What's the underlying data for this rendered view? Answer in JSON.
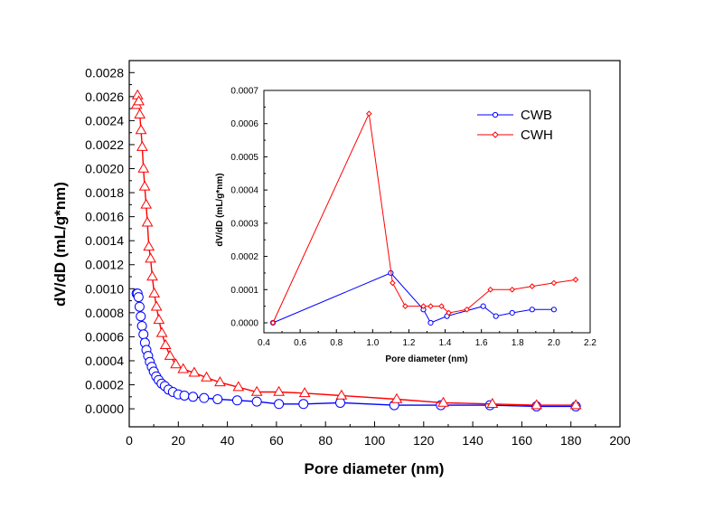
{
  "chart_data": [
    {
      "name": "main",
      "type": "line",
      "xlabel": "Pore diameter (nm)",
      "ylabel": "dV/dD (mL/g*nm)",
      "xlim": [
        0,
        200
      ],
      "ylim": [
        -0.00015,
        0.0029
      ],
      "xticks": [
        0,
        20,
        40,
        60,
        80,
        100,
        120,
        140,
        160,
        180,
        200
      ],
      "xtick_labels": [
        "0",
        "20",
        "40",
        "60",
        "80",
        "100",
        "120",
        "140",
        "160",
        "180",
        "200"
      ],
      "yticks": [
        0,
        0.0002,
        0.0004,
        0.0006,
        0.0008,
        0.001,
        0.0012,
        0.0014,
        0.0016,
        0.0018,
        0.002,
        0.0022,
        0.0024,
        0.0026,
        0.0028
      ],
      "ytick_labels": [
        "0.0000",
        "0.0002",
        "0.0004",
        "0.0006",
        "0.0008",
        "0.0010",
        "0.0012",
        "0.0014",
        "0.0016",
        "0.0018",
        "0.0020",
        "0.0022",
        "0.0024",
        "0.0026",
        "0.0028"
      ],
      "series": [
        {
          "name": "CWB",
          "color": "#0000ff",
          "marker": "circle",
          "x": [
            3.0,
            3.4,
            3.8,
            4.2,
            4.7,
            5.2,
            5.8,
            6.4,
            7.0,
            7.7,
            8.4,
            9.2,
            10.0,
            11.0,
            12.0,
            13.2,
            14.5,
            16.0,
            17.8,
            20.0,
            22.5,
            26.0,
            30.5,
            36.0,
            44.0,
            52.0,
            61.0,
            71.0,
            86.0,
            108.0,
            127.0,
            147.0,
            166.0,
            182.0
          ],
          "y": [
            0.00096,
            0.00096,
            0.00093,
            0.00085,
            0.00077,
            0.00069,
            0.00062,
            0.00055,
            0.00049,
            0.00044,
            0.00039,
            0.00035,
            0.00031,
            0.00027,
            0.00024,
            0.00021,
            0.00019,
            0.00016,
            0.00014,
            0.00012,
            0.00011,
            0.0001,
            9e-05,
            8e-05,
            7e-05,
            6e-05,
            4e-05,
            4e-05,
            5e-05,
            3e-05,
            3e-05,
            3e-05,
            2e-05,
            2e-05
          ]
        },
        {
          "name": "CWH",
          "color": "#ff0000",
          "marker": "triangle",
          "x": [
            3.0,
            3.4,
            3.9,
            4.3,
            4.8,
            5.3,
            5.8,
            6.3,
            6.9,
            7.4,
            8.0,
            8.7,
            9.4,
            10.2,
            11.1,
            12.1,
            13.3,
            14.8,
            16.6,
            19.0,
            22.0,
            26.5,
            31.5,
            37.0,
            44.5,
            52.0,
            61.0,
            71.5,
            86.5,
            109.0,
            128.0,
            148.0,
            166.0,
            182.0
          ],
          "y": [
            0.00253,
            0.00261,
            0.00256,
            0.00245,
            0.00232,
            0.00218,
            0.002,
            0.00185,
            0.0017,
            0.00155,
            0.00135,
            0.00125,
            0.0011,
            0.00096,
            0.00085,
            0.00074,
            0.00063,
            0.00053,
            0.00044,
            0.00037,
            0.00033,
            0.0003,
            0.00026,
            0.00022,
            0.00018,
            0.00014,
            0.00014,
            0.00013,
            0.00011,
            8e-05,
            5e-05,
            4e-05,
            3e-05,
            3e-05
          ]
        }
      ]
    },
    {
      "name": "inset",
      "type": "line",
      "xlabel": "Pore diameter (nm)",
      "ylabel": "dV/dD (mL/g*nm)",
      "xlim": [
        0.4,
        2.2
      ],
      "ylim": [
        -3e-05,
        0.0007
      ],
      "xticks": [
        0.4,
        0.6,
        0.8,
        1.0,
        1.2,
        1.4,
        1.6,
        1.8,
        2.0,
        2.2
      ],
      "xtick_labels": [
        "0.4",
        "0.6",
        "0.8",
        "1.0",
        "1.2",
        "1.4",
        "1.6",
        "1.8",
        "2.0",
        "2.2"
      ],
      "yticks": [
        0,
        0.0001,
        0.0002,
        0.0003,
        0.0004,
        0.0005,
        0.0006,
        0.0007
      ],
      "ytick_labels": [
        "0.0000",
        "0.0001",
        "0.0002",
        "0.0003",
        "0.0004",
        "0.0005",
        "0.0006",
        "0.0007"
      ],
      "legend": {
        "position": "top-right",
        "entries": [
          "CWB",
          "CWH"
        ]
      },
      "series": [
        {
          "name": "CWB",
          "color": "#0000ff",
          "marker": "circle",
          "x": [
            0.45,
            1.1,
            1.28,
            1.32,
            1.41,
            1.61,
            1.68,
            1.77,
            1.88,
            2.0
          ],
          "y": [
            0.0,
            0.00015,
            4e-05,
            0.0,
            2e-05,
            5e-05,
            2e-05,
            3e-05,
            4e-05,
            4e-05
          ]
        },
        {
          "name": "CWH",
          "color": "#ff0000",
          "marker": "diamond",
          "x": [
            0.45,
            0.98,
            1.11,
            1.18,
            1.28,
            1.32,
            1.38,
            1.42,
            1.52,
            1.65,
            1.77,
            1.88,
            2.0,
            2.12
          ],
          "y": [
            0.0,
            0.00063,
            0.00012,
            5e-05,
            5e-05,
            5e-05,
            5e-05,
            3e-05,
            4e-05,
            0.0001,
            0.0001,
            0.00011,
            0.00012,
            0.00013
          ]
        }
      ]
    }
  ]
}
